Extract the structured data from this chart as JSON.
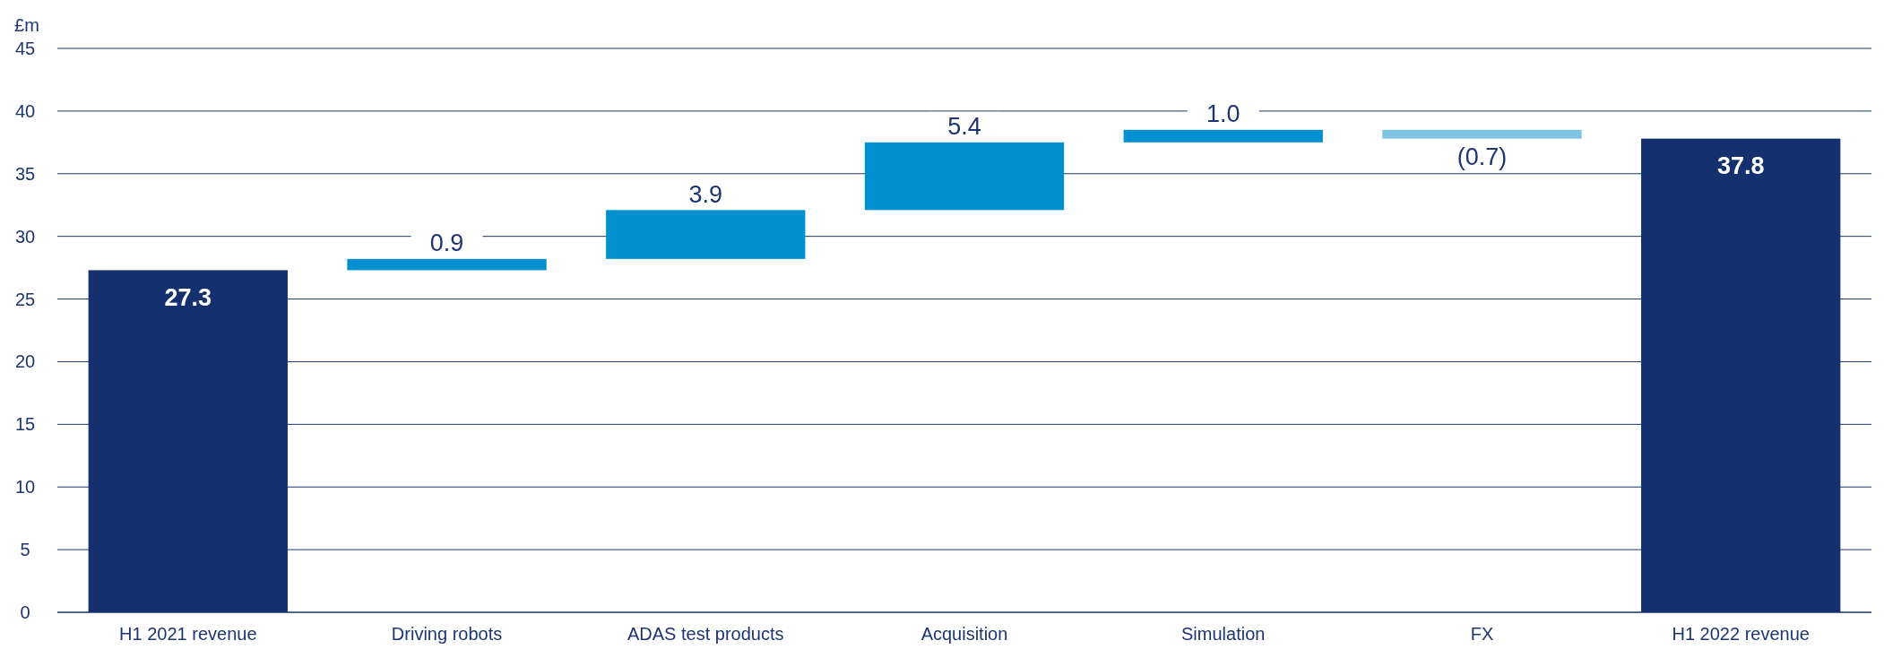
{
  "chart_data": {
    "type": "bar",
    "ylabel": "£m",
    "categories": [
      "H1 2021 revenue",
      "Driving robots",
      "ADAS test products",
      "Acquisition",
      "Simulation",
      "FX",
      "H1 2022 revenue"
    ],
    "values": [
      27.3,
      0.9,
      3.9,
      5.4,
      1.0,
      -0.7,
      37.8
    ],
    "base": [
      0,
      27.3,
      28.2,
      32.1,
      37.5,
      38.5,
      0
    ],
    "colors": [
      "#14306e",
      "#0090d0",
      "#0090d0",
      "#0090d0",
      "#0090d0",
      "#7fc4e4",
      "#14306e"
    ],
    "value_labels": [
      "27.3",
      "0.9",
      "3.9",
      "5.4",
      "1.0",
      "(0.7)",
      "37.8"
    ],
    "ylim": [
      0,
      45
    ],
    "yticks": [
      0,
      5,
      10,
      15,
      20,
      25,
      30,
      35,
      40,
      45
    ],
    "grid": "y"
  }
}
